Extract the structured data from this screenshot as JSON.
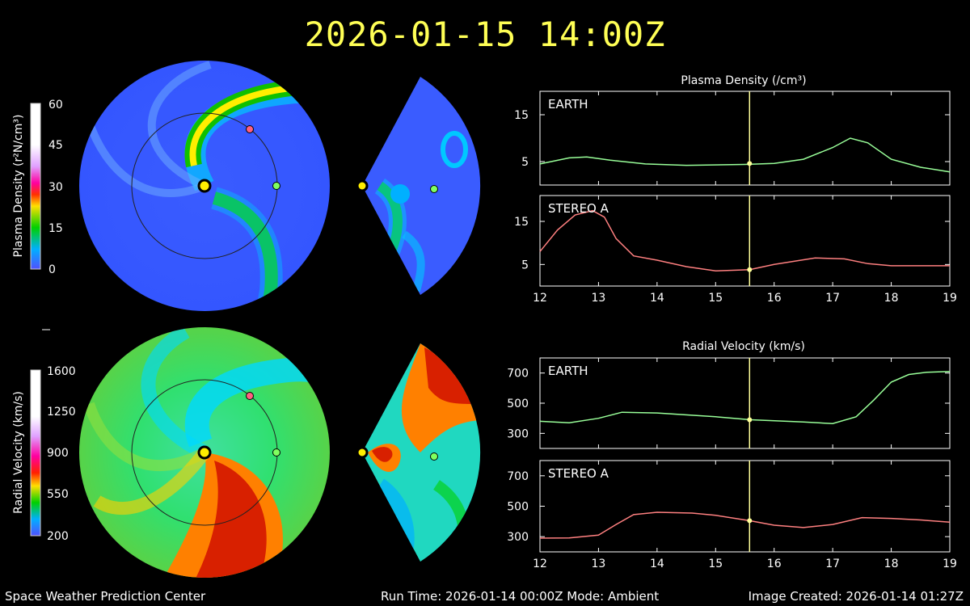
{
  "header": {
    "title": "2026-01-15 14:00Z"
  },
  "colors": {
    "background": "#000000",
    "title": "#ffff55",
    "earth_series": "#99ff99",
    "stereo_series": "#ff8080",
    "marker_line": "#ffff99",
    "sun": "#ffee00",
    "stereo_a_marker": "#ff6080",
    "earth_marker": "#80ff60"
  },
  "colorbars": [
    {
      "label": "Plasma Density (r²N/cm³)",
      "ticks": [
        "60",
        "45",
        "30",
        "15",
        "0"
      ]
    },
    {
      "label": "Radial Velocity (km/s)",
      "ticks": [
        "1600",
        "1250",
        "900",
        "550",
        "200"
      ]
    }
  ],
  "footer": {
    "org": "Space Weather Prediction Center",
    "run": "Run Time: 2026-01-14 00:00Z  Mode: Ambient",
    "created": "Image Created: 2026-01-14 01:27Z"
  },
  "chart_data": [
    {
      "type": "line",
      "title": "Plasma Density (/cm³)",
      "panel": "EARTH",
      "x": [
        12,
        12.5,
        12.8,
        13.2,
        13.8,
        14.5,
        15.5,
        16,
        16.5,
        17,
        17.3,
        17.6,
        18,
        18.5,
        19
      ],
      "y": [
        4.5,
        5.8,
        6.0,
        5.3,
        4.5,
        4.2,
        4.4,
        4.6,
        5.5,
        8.0,
        10.0,
        9.0,
        5.5,
        3.8,
        2.8
      ],
      "ylim": [
        0,
        20
      ],
      "yticks": [
        5,
        15
      ],
      "xlim": [
        12,
        19
      ],
      "xticks": [
        12,
        13,
        14,
        15,
        16,
        17,
        18,
        19
      ],
      "marker_x": 15.58,
      "marker_y": 4.6
    },
    {
      "type": "line",
      "panel": "STEREO A",
      "x": [
        12,
        12.3,
        12.6,
        12.9,
        13.1,
        13.3,
        13.6,
        14,
        14.5,
        15,
        15.58,
        16,
        16.7,
        17.2,
        17.6,
        18,
        19
      ],
      "y": [
        8,
        13,
        16.5,
        17.5,
        16,
        11,
        7,
        6,
        4.5,
        3.5,
        3.8,
        5,
        6.5,
        6.3,
        5.2,
        4.7,
        4.7
      ],
      "ylim": [
        0,
        21
      ],
      "yticks": [
        5,
        15
      ],
      "xlim": [
        12,
        19
      ],
      "xticks": [
        12,
        13,
        14,
        15,
        16,
        17,
        18,
        19
      ],
      "marker_x": 15.58,
      "marker_y": 3.8
    },
    {
      "type": "line",
      "title": "Radial Velocity (km/s)",
      "panel": "EARTH",
      "x": [
        12,
        12.5,
        13,
        13.4,
        14,
        15,
        15.6,
        16.5,
        17,
        17.4,
        17.7,
        18,
        18.3,
        18.6,
        19
      ],
      "y": [
        380,
        370,
        400,
        440,
        435,
        410,
        390,
        375,
        365,
        410,
        520,
        640,
        690,
        705,
        710
      ],
      "ylim": [
        200,
        800
      ],
      "yticks": [
        300,
        500,
        700
      ],
      "xlim": [
        12,
        19
      ],
      "xticks": [
        12,
        13,
        14,
        15,
        16,
        17,
        18,
        19
      ],
      "marker_x": 15.58,
      "marker_y": 390
    },
    {
      "type": "line",
      "panel": "STEREO A",
      "x": [
        12,
        12.5,
        13,
        13.3,
        13.6,
        14,
        14.6,
        15,
        15.58,
        16,
        16.5,
        17,
        17.5,
        18,
        18.5,
        19
      ],
      "y": [
        290,
        292,
        310,
        380,
        445,
        460,
        455,
        440,
        405,
        375,
        360,
        380,
        425,
        420,
        410,
        395
      ],
      "ylim": [
        200,
        800
      ],
      "yticks": [
        300,
        500,
        700
      ],
      "xlim": [
        12,
        19
      ],
      "xticks": [
        12,
        13,
        14,
        15,
        16,
        17,
        18,
        19
      ],
      "marker_x": 15.58,
      "marker_y": 405
    }
  ]
}
